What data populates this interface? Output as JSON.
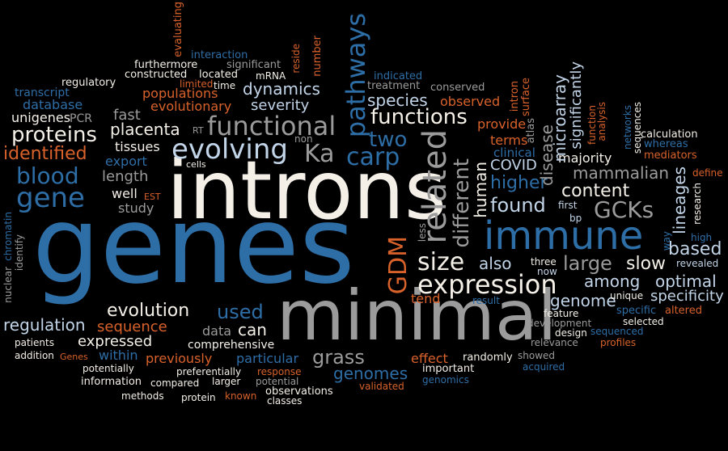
{
  "colors": {
    "background": "#000000",
    "white": "#f4f0e8",
    "gray": "#9b9b9b",
    "blue": "#2e6ea6",
    "lightblue": "#c2d4e8",
    "orange": "#d9622b"
  },
  "words": {
    "genes": "genes",
    "introns": "introns",
    "minimal": "minimal",
    "immune": "immune",
    "related": "related",
    "pathways": "pathways",
    "expression": "expression",
    "functional": "functional",
    "evolving": "evolving",
    "gene": "gene",
    "proteins": "proteins",
    "blood": "blood",
    "identified": "identified",
    "size": "size",
    "different": "different",
    "ka": "Ka",
    "carp": "carp",
    "two": "two",
    "functions": "functions",
    "species": "species",
    "gdm": "GDM",
    "human": "human",
    "found": "found",
    "higher": "higher",
    "gcks": "GCKs",
    "content": "content",
    "mammalian": "mammalian",
    "lineages": "lineages",
    "based": "based",
    "large": "large",
    "slow": "slow",
    "optimal": "optimal",
    "among": "among",
    "genome": "genome",
    "specificity": "specificity",
    "also": "also",
    "evolution": "evolution",
    "used": "used",
    "regulation": "regulation",
    "sequence": "sequence",
    "can": "can",
    "grass": "grass",
    "genomes": "genomes",
    "effect": "effect",
    "expressed": "expressed",
    "within": "within",
    "previously": "previously",
    "particular": "particular",
    "comprehensive": "comprehensive",
    "data": "data",
    "placenta": "placenta",
    "tissues": "tissues",
    "length": "length",
    "well": "well",
    "study": "study",
    "export": "export",
    "fast": "fast",
    "severity": "severity",
    "dynamics": "dynamics",
    "populations": "populations",
    "evolutionary": "evolutionary",
    "unigenes": "unigenes",
    "database": "database",
    "transcript": "transcript",
    "regulatory": "regulatory",
    "pcr": "PCR",
    "furthermore": "furthermore",
    "constructed": "constructed",
    "interaction": "interaction",
    "significant": "significant",
    "located": "located",
    "limited": "limited",
    "time": "time",
    "evaluating": "evaluating",
    "mrna": "mRNA",
    "reside": "reside",
    "number": "number",
    "indicated": "indicated",
    "treatment": "treatment",
    "conserved": "conserved",
    "observed": "observed",
    "provide": "provide",
    "terms": "terms",
    "clinical": "clinical",
    "covid": "COVID",
    "disease": "disease",
    "microarray": "microarray",
    "significantly": "significantly",
    "majority": "majority",
    "intron": "intron",
    "surface": "surface",
    "atlas": "atlas",
    "function": "function",
    "analysis": "analysis",
    "networks": "networks",
    "sequences": "sequences",
    "calculation": "calculation",
    "whereas": "whereas",
    "mediators": "mediators",
    "define": "define",
    "research": "research",
    "high": "high",
    "way": "way",
    "revealed": "revealed",
    "first": "first",
    "bp": "bp",
    "less": "less",
    "three": "three",
    "now": "now",
    "unique": "unique",
    "specific": "specific",
    "altered": "altered",
    "feature": "feature",
    "selected": "selected",
    "development": "development",
    "design": "design",
    "sequenced": "sequenced",
    "relevance": "relevance",
    "profiles": "profiles",
    "result": "result",
    "tend": "tend",
    "showed": "showed",
    "acquired": "acquired",
    "randomly": "randomly",
    "important": "important",
    "genomics": "genomics",
    "validated": "validated",
    "observations": "observations",
    "classes": "classes",
    "potential": "potential",
    "response": "response",
    "known": "known",
    "larger": "larger",
    "preferentially": "preferentially",
    "compared": "compared",
    "methods": "methods",
    "protein": "protein",
    "information": "information",
    "potentially": "potentially",
    "addition": "addition",
    "genes_small": "Genes",
    "patients": "patients",
    "chromatin": "chromatin",
    "nuclear": "nuclear",
    "identify": "identify",
    "cells": "cells",
    "est": "EST",
    "rt": "RT",
    "non": "non"
  }
}
